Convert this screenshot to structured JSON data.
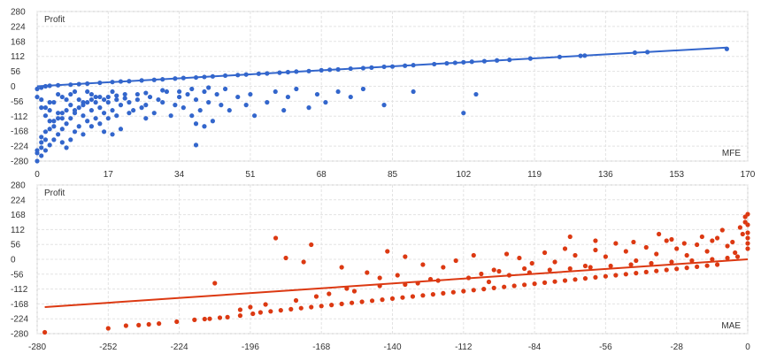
{
  "chart_data": [
    {
      "type": "scatter",
      "title": "",
      "ylabel": "Profit",
      "xlabel": "MFE",
      "color": "#3366cc",
      "xlim": [
        0,
        170
      ],
      "ylim": [
        -280,
        280
      ],
      "xticks": [
        0,
        17,
        34,
        51,
        68,
        85,
        102,
        119,
        136,
        153,
        170
      ],
      "yticks": [
        280,
        224,
        168,
        112,
        56,
        0,
        -56,
        -112,
        -168,
        -224,
        -280
      ],
      "grid": true,
      "trendline": {
        "x1": 0,
        "y1": 0,
        "x2": 165,
        "y2": 145
      },
      "points": [
        [
          0,
          -280
        ],
        [
          0,
          -250
        ],
        [
          0,
          -240
        ],
        [
          1,
          -260
        ],
        [
          1,
          -230
        ],
        [
          1,
          -210
        ],
        [
          1,
          -190
        ],
        [
          2,
          -240
        ],
        [
          2,
          -200
        ],
        [
          2,
          -170
        ],
        [
          3,
          -220
        ],
        [
          3,
          -160
        ],
        [
          3,
          -130
        ],
        [
          4,
          -200
        ],
        [
          4,
          -150
        ],
        [
          5,
          -180
        ],
        [
          5,
          -120
        ],
        [
          6,
          -160
        ],
        [
          6,
          -100
        ],
        [
          7,
          -140
        ],
        [
          8,
          -200
        ],
        [
          8,
          -120
        ],
        [
          9,
          -90
        ],
        [
          10,
          -150
        ],
        [
          11,
          -110
        ],
        [
          12,
          -130
        ],
        [
          13,
          -90
        ],
        [
          14,
          -120
        ],
        [
          15,
          -80
        ],
        [
          16,
          -100
        ],
        [
          17,
          -60
        ],
        [
          18,
          -90
        ],
        [
          19,
          -50
        ],
        [
          20,
          -70
        ],
        [
          22,
          -60
        ],
        [
          24,
          -50
        ],
        [
          25,
          -80
        ],
        [
          27,
          -40
        ],
        [
          28,
          -100
        ],
        [
          30,
          -60
        ],
        [
          31,
          -20
        ],
        [
          33,
          -70
        ],
        [
          34,
          -40
        ],
        [
          35,
          -80
        ],
        [
          36,
          -30
        ],
        [
          37,
          -110
        ],
        [
          38,
          -50
        ],
        [
          39,
          -90
        ],
        [
          40,
          -20
        ],
        [
          41,
          -60
        ],
        [
          42,
          -130
        ],
        [
          43,
          -30
        ],
        [
          44,
          -70
        ],
        [
          45,
          -10
        ],
        [
          46,
          -90
        ],
        [
          48,
          -40
        ],
        [
          50,
          -70
        ],
        [
          51,
          -30
        ],
        [
          52,
          -110
        ],
        [
          55,
          -60
        ],
        [
          57,
          -20
        ],
        [
          59,
          -90
        ],
        [
          60,
          -40
        ],
        [
          62,
          -10
        ],
        [
          65,
          -80
        ],
        [
          67,
          -30
        ],
        [
          69,
          -60
        ],
        [
          72,
          -20
        ],
        [
          75,
          -40
        ],
        [
          78,
          -10
        ],
        [
          83,
          -70
        ],
        [
          90,
          -20
        ],
        [
          102,
          -100
        ],
        [
          105,
          -30
        ],
        [
          4,
          -60
        ],
        [
          6,
          -40
        ],
        [
          8,
          -30
        ],
        [
          10,
          -50
        ],
        [
          12,
          -20
        ],
        [
          14,
          -40
        ],
        [
          2,
          -80
        ],
        [
          3,
          -60
        ],
        [
          5,
          -30
        ],
        [
          7,
          -50
        ],
        [
          9,
          -20
        ],
        [
          11,
          -60
        ],
        [
          13,
          -30
        ],
        [
          15,
          -40
        ],
        [
          18,
          -20
        ],
        [
          21,
          -30
        ],
        [
          23,
          -90
        ],
        [
          26,
          -70
        ],
        [
          29,
          -50
        ],
        [
          32,
          -110
        ],
        [
          38,
          -140
        ],
        [
          40,
          -150
        ],
        [
          38,
          -220
        ],
        [
          20,
          -160
        ],
        [
          18,
          -180
        ],
        [
          16,
          -170
        ],
        [
          0,
          -10
        ],
        [
          1,
          -5
        ],
        [
          2,
          0
        ],
        [
          3,
          2
        ],
        [
          5,
          4
        ],
        [
          8,
          6
        ],
        [
          10,
          8
        ],
        [
          12,
          10
        ],
        [
          15,
          13
        ],
        [
          18,
          16
        ],
        [
          20,
          18
        ],
        [
          22,
          19
        ],
        [
          25,
          22
        ],
        [
          28,
          24
        ],
        [
          30,
          26
        ],
        [
          33,
          29
        ],
        [
          35,
          31
        ],
        [
          38,
          33
        ],
        [
          40,
          35
        ],
        [
          42,
          37
        ],
        [
          45,
          40
        ],
        [
          48,
          42
        ],
        [
          50,
          44
        ],
        [
          53,
          47
        ],
        [
          55,
          48
        ],
        [
          58,
          51
        ],
        [
          60,
          53
        ],
        [
          62,
          55
        ],
        [
          65,
          57
        ],
        [
          68,
          60
        ],
        [
          70,
          62
        ],
        [
          72,
          63
        ],
        [
          75,
          66
        ],
        [
          78,
          68
        ],
        [
          80,
          70
        ],
        [
          83,
          73
        ],
        [
          85,
          74
        ],
        [
          88,
          77
        ],
        [
          90,
          79
        ],
        [
          95,
          83
        ],
        [
          98,
          86
        ],
        [
          100,
          88
        ],
        [
          102,
          90
        ],
        [
          104,
          92
        ],
        [
          107,
          94
        ],
        [
          110,
          97
        ],
        [
          113,
          99
        ],
        [
          118,
          104
        ],
        [
          125,
          110
        ],
        [
          130,
          114
        ],
        [
          131,
          115
        ],
        [
          143,
          126
        ],
        [
          146,
          128
        ],
        [
          165,
          140
        ],
        [
          0,
          -40
        ],
        [
          1,
          -50
        ],
        [
          1,
          -80
        ],
        [
          2,
          -110
        ],
        [
          3,
          -90
        ],
        [
          4,
          -130
        ],
        [
          5,
          -100
        ],
        [
          6,
          -120
        ],
        [
          7,
          -90
        ],
        [
          8,
          -70
        ],
        [
          9,
          -100
        ],
        [
          10,
          -80
        ],
        [
          11,
          -70
        ],
        [
          12,
          -60
        ],
        [
          13,
          -50
        ],
        [
          14,
          -60
        ],
        [
          16,
          -50
        ],
        [
          17,
          -40
        ],
        [
          19,
          -35
        ],
        [
          21,
          -45
        ],
        [
          24,
          -30
        ],
        [
          26,
          -25
        ],
        [
          30,
          -15
        ],
        [
          34,
          -20
        ],
        [
          37,
          -10
        ],
        [
          41,
          -5
        ],
        [
          6,
          -210
        ],
        [
          7,
          -230
        ],
        [
          9,
          -170
        ],
        [
          11,
          -180
        ],
        [
          13,
          -150
        ],
        [
          15,
          -140
        ],
        [
          17,
          -120
        ],
        [
          19,
          -110
        ],
        [
          22,
          -100
        ],
        [
          26,
          -120
        ]
      ]
    },
    {
      "type": "scatter",
      "title": "",
      "ylabel": "Profit",
      "xlabel": "MAE",
      "color": "#dc3912",
      "xlim": [
        -280,
        0
      ],
      "ylim": [
        -280,
        280
      ],
      "xticks": [
        -280,
        -252,
        -224,
        -196,
        -168,
        -140,
        -112,
        -84,
        -56,
        -28,
        0
      ],
      "yticks": [
        280,
        224,
        168,
        112,
        56,
        0,
        -56,
        -112,
        -168,
        -224,
        -280
      ],
      "grid": true,
      "trendline": {
        "x1": -277,
        "y1": -180,
        "x2": 0,
        "y2": 0
      },
      "points": [
        [
          -277,
          -275
        ],
        [
          -252,
          -260
        ],
        [
          -245,
          -250
        ],
        [
          -240,
          -248
        ],
        [
          -236,
          -245
        ],
        [
          -232,
          -242
        ],
        [
          -225,
          -235
        ],
        [
          -218,
          -228
        ],
        [
          -214,
          -225
        ],
        [
          -212,
          -224
        ],
        [
          -208,
          -220
        ],
        [
          -205,
          -218
        ],
        [
          -200,
          -212
        ],
        [
          -195,
          -205
        ],
        [
          -192,
          -200
        ],
        [
          -188,
          -196
        ],
        [
          -184,
          -192
        ],
        [
          -180,
          -188
        ],
        [
          -176,
          -184
        ],
        [
          -172,
          -180
        ],
        [
          -168,
          -176
        ],
        [
          -164,
          -172
        ],
        [
          -160,
          -168
        ],
        [
          -156,
          -164
        ],
        [
          -152,
          -160
        ],
        [
          -148,
          -156
        ],
        [
          -144,
          -152
        ],
        [
          -140,
          -148
        ],
        [
          -136,
          -144
        ],
        [
          -132,
          -140
        ],
        [
          -128,
          -136
        ],
        [
          -124,
          -132
        ],
        [
          -120,
          -128
        ],
        [
          -116,
          -124
        ],
        [
          -112,
          -120
        ],
        [
          -108,
          -116
        ],
        [
          -104,
          -112
        ],
        [
          -100,
          -108
        ],
        [
          -96,
          -104
        ],
        [
          -92,
          -100
        ],
        [
          -88,
          -96
        ],
        [
          -84,
          -92
        ],
        [
          -80,
          -88
        ],
        [
          -76,
          -84
        ],
        [
          -72,
          -80
        ],
        [
          -68,
          -76
        ],
        [
          -64,
          -72
        ],
        [
          -60,
          -68
        ],
        [
          -56,
          -64
        ],
        [
          -52,
          -60
        ],
        [
          -48,
          -56
        ],
        [
          -44,
          -52
        ],
        [
          -40,
          -48
        ],
        [
          -36,
          -44
        ],
        [
          -32,
          -40
        ],
        [
          -28,
          -36
        ],
        [
          -24,
          -32
        ],
        [
          -20,
          -28
        ],
        [
          -16,
          -24
        ],
        [
          -12,
          -20
        ],
        [
          -186,
          80
        ],
        [
          -172,
          55
        ],
        [
          -182,
          5
        ],
        [
          -175,
          -10
        ],
        [
          -210,
          -90
        ],
        [
          -196,
          -180
        ],
        [
          -178,
          -155
        ],
        [
          -165,
          -130
        ],
        [
          -158,
          -110
        ],
        [
          -150,
          -50
        ],
        [
          -142,
          30
        ],
        [
          -135,
          10
        ],
        [
          -128,
          -20
        ],
        [
          -120,
          -30
        ],
        [
          -115,
          -5
        ],
        [
          -108,
          15
        ],
        [
          -100,
          -40
        ],
        [
          -95,
          20
        ],
        [
          -90,
          5
        ],
        [
          -85,
          -15
        ],
        [
          -80,
          25
        ],
        [
          -76,
          -10
        ],
        [
          -72,
          40
        ],
        [
          -68,
          15
        ],
        [
          -64,
          -25
        ],
        [
          -60,
          35
        ],
        [
          -56,
          10
        ],
        [
          -52,
          60
        ],
        [
          -48,
          30
        ],
        [
          -44,
          -5
        ],
        [
          -40,
          45
        ],
        [
          -36,
          20
        ],
        [
          -32,
          70
        ],
        [
          -28,
          40
        ],
        [
          -24,
          15
        ],
        [
          -20,
          55
        ],
        [
          -16,
          30
        ],
        [
          -12,
          80
        ],
        [
          -8,
          50
        ],
        [
          -5,
          25
        ],
        [
          -3,
          120
        ],
        [
          -2,
          95
        ],
        [
          -1,
          160
        ],
        [
          -1,
          140
        ],
        [
          0,
          170
        ],
        [
          0,
          130
        ],
        [
          0,
          100
        ],
        [
          0,
          80
        ],
        [
          0,
          60
        ],
        [
          0,
          40
        ],
        [
          -70,
          85
        ],
        [
          -60,
          70
        ],
        [
          -45,
          65
        ],
        [
          -35,
          95
        ],
        [
          -30,
          75
        ],
        [
          -25,
          60
        ],
        [
          -18,
          85
        ],
        [
          -14,
          70
        ],
        [
          -10,
          110
        ],
        [
          -6,
          65
        ],
        [
          -160,
          -30
        ],
        [
          -145,
          -70
        ],
        [
          -138,
          -60
        ],
        [
          -130,
          -90
        ],
        [
          -122,
          -80
        ],
        [
          -110,
          -70
        ],
        [
          -102,
          -85
        ],
        [
          -94,
          -60
        ],
        [
          -86,
          -50
        ],
        [
          -78,
          -40
        ],
        [
          -70,
          -35
        ],
        [
          -62,
          -30
        ],
        [
          -54,
          -25
        ],
        [
          -46,
          -20
        ],
        [
          -38,
          -15
        ],
        [
          -30,
          -10
        ],
        [
          -22,
          -5
        ],
        [
          -14,
          0
        ],
        [
          -8,
          5
        ],
        [
          -4,
          10
        ],
        [
          -200,
          -190
        ],
        [
          -190,
          -170
        ],
        [
          -170,
          -140
        ],
        [
          -155,
          -120
        ],
        [
          -145,
          -100
        ],
        [
          -135,
          -95
        ],
        [
          -125,
          -75
        ],
        [
          -105,
          -55
        ],
        [
          -98,
          -45
        ],
        [
          -88,
          -35
        ]
      ]
    }
  ]
}
